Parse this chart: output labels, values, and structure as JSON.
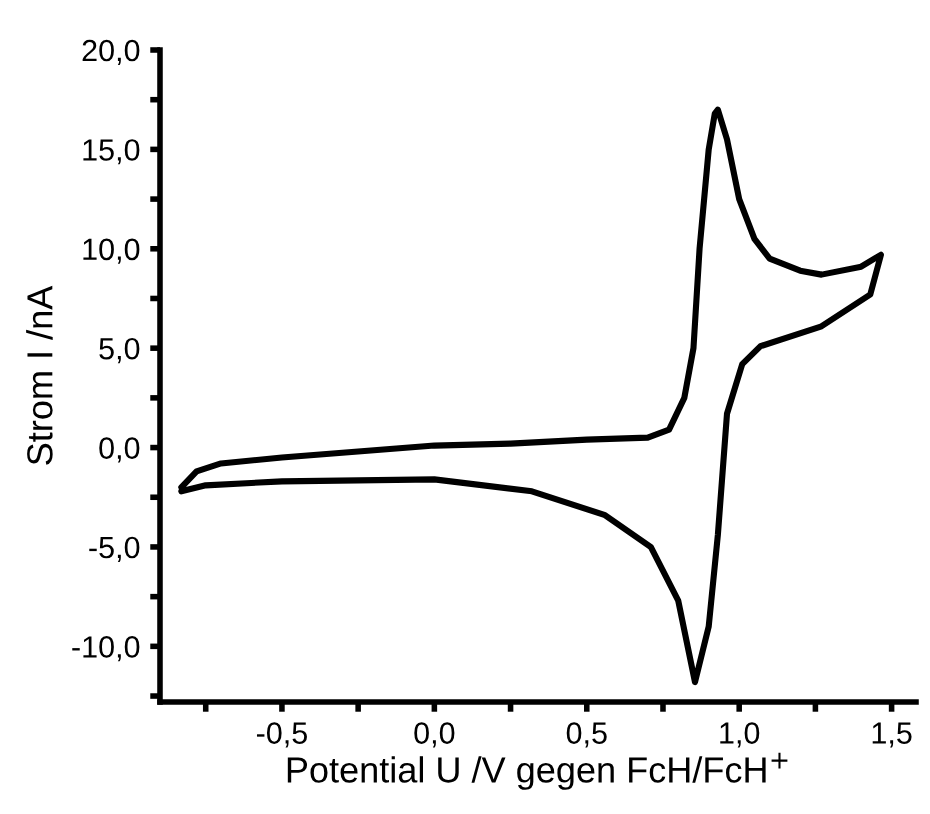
{
  "chart_data": {
    "type": "line",
    "xlabel": "Potential U /V gegen FcH/FcH$^{+}$",
    "ylabel": "Strom I /nA",
    "series": [
      {
        "color": "#000000",
        "x": [
          -0.83,
          -0.78,
          -0.7,
          -0.5,
          -0.25,
          0.0,
          0.25,
          0.5,
          0.7,
          0.77,
          0.82,
          0.85,
          0.87,
          0.9,
          0.92,
          0.93,
          0.96,
          1.0,
          1.05,
          1.1,
          1.2,
          1.27,
          1.4,
          1.465,
          1.43,
          1.27,
          1.07,
          1.01,
          0.96,
          0.93,
          0.9,
          0.855,
          0.8,
          0.71,
          0.56,
          0.32,
          0.0,
          -0.5,
          -0.75,
          -0.83
        ],
        "values": [
          -2.0,
          -1.2,
          -0.8,
          -0.5,
          -0.2,
          0.1,
          0.2,
          0.4,
          0.5,
          0.9,
          2.5,
          5.0,
          10.0,
          15.0,
          16.8,
          17.0,
          15.5,
          12.5,
          10.5,
          9.5,
          8.9,
          8.7,
          9.1,
          9.7,
          7.7,
          6.1,
          5.1,
          4.2,
          1.7,
          -4.4,
          -9.0,
          -11.8,
          -7.7,
          -5.0,
          -3.4,
          -2.2,
          -1.6,
          -1.7,
          -1.9,
          -2.2
        ]
      }
    ],
    "xlim": [
      -0.9,
      1.58
    ],
    "ylim": [
      -12.8,
      20
    ],
    "xticks": [
      {
        "value": -0.75,
        "label": null
      },
      {
        "value": -0.5,
        "label": "-0,5"
      },
      {
        "value": -0.25,
        "label": null
      },
      {
        "value": 0.0,
        "label": "0,0"
      },
      {
        "value": 0.25,
        "label": null
      },
      {
        "value": 0.5,
        "label": "0,5"
      },
      {
        "value": 0.75,
        "label": null
      },
      {
        "value": 1.0,
        "label": "1,0"
      },
      {
        "value": 1.25,
        "label": null
      },
      {
        "value": 1.5,
        "label": "1,5"
      }
    ],
    "yticks": [
      {
        "value": -12.5,
        "label": null
      },
      {
        "value": -10,
        "label": "-10,0"
      },
      {
        "value": -7.5,
        "label": null
      },
      {
        "value": -5,
        "label": "-5,0"
      },
      {
        "value": -2.5,
        "label": null
      },
      {
        "value": 0,
        "label": "0,0"
      },
      {
        "value": 2.5,
        "label": null
      },
      {
        "value": 5,
        "label": "5,0"
      },
      {
        "value": 7.5,
        "label": null
      },
      {
        "value": 10,
        "label": "10,0"
      },
      {
        "value": 12.5,
        "label": null
      },
      {
        "value": 15,
        "label": "15,0"
      },
      {
        "value": 17.5,
        "label": null
      },
      {
        "value": 20,
        "label": "20,0"
      }
    ],
    "grid": false,
    "legend": false
  }
}
